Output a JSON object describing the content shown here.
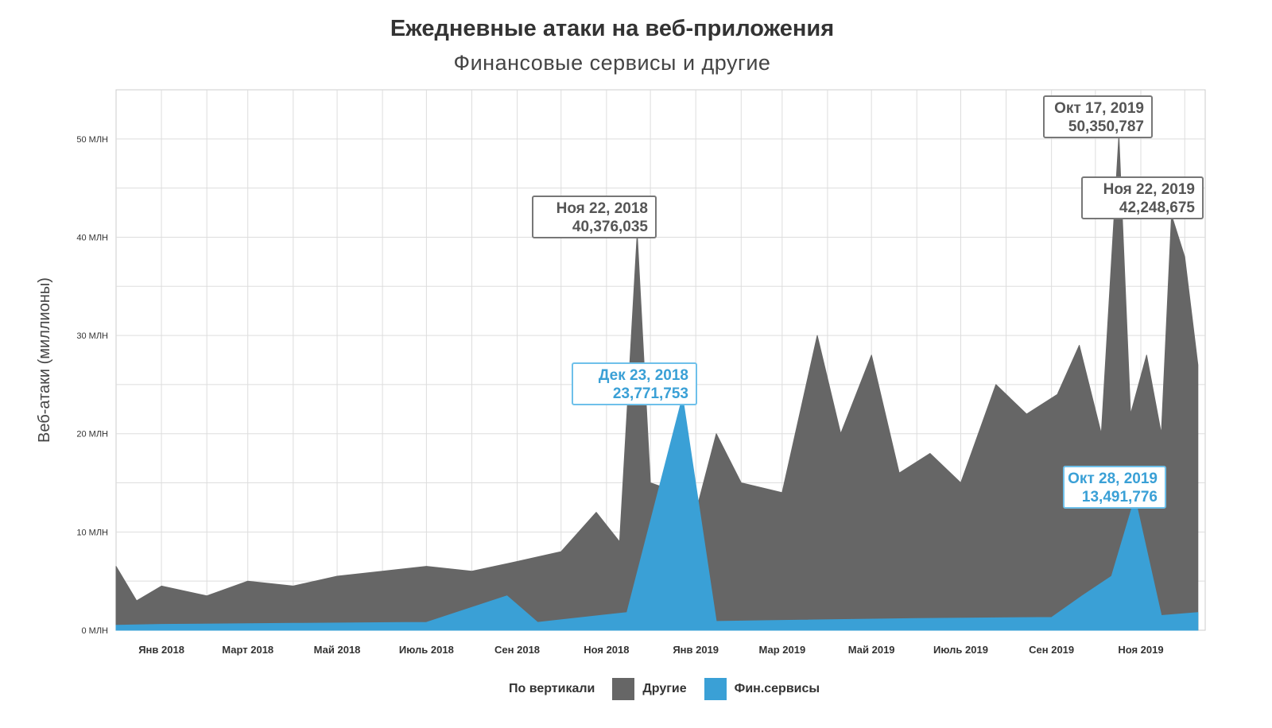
{
  "chart_data": {
    "type": "area",
    "title": "Ежедневные атаки на веб-приложения",
    "subtitle": "Финансовые сервисы и другие",
    "ylabel": "Веб-атаки (миллионы)",
    "ylim": [
      0,
      55000000
    ],
    "yticks": [
      {
        "value": 0,
        "label": "0 МЛН"
      },
      {
        "value": 10000000,
        "label": "10 МЛН"
      },
      {
        "value": 20000000,
        "label": "20 МЛН"
      },
      {
        "value": 30000000,
        "label": "30 МЛН"
      },
      {
        "value": 40000000,
        "label": "40 МЛН"
      },
      {
        "value": 50000000,
        "label": "50 МЛН"
      }
    ],
    "xlim": [
      "2017-12-01",
      "2019-12-15"
    ],
    "xticks": [
      {
        "date": "2018-01-01",
        "label": "Янв 2018"
      },
      {
        "date": "2018-03-01",
        "label": "Март 2018"
      },
      {
        "date": "2018-05-01",
        "label": "Май 2018"
      },
      {
        "date": "2018-07-01",
        "label": "Июль 2018"
      },
      {
        "date": "2018-09-01",
        "label": "Сен 2018"
      },
      {
        "date": "2018-11-01",
        "label": "Ноя 2018"
      },
      {
        "date": "2019-01-01",
        "label": "Янв 2019"
      },
      {
        "date": "2019-03-01",
        "label": "Мар 2019"
      },
      {
        "date": "2019-05-01",
        "label": "Май 2019"
      },
      {
        "date": "2019-07-01",
        "label": "Июль 2019"
      },
      {
        "date": "2019-09-01",
        "label": "Сен 2019"
      },
      {
        "date": "2019-11-01",
        "label": "Ноя 2019"
      }
    ],
    "grid": true,
    "legend": {
      "title": "По вертикали",
      "placement": "bottom"
    },
    "series": [
      {
        "name": "Другие",
        "color": "#666666",
        "points": [
          [
            "2017-12-01",
            6500000
          ],
          [
            "2017-12-15",
            3000000
          ],
          [
            "2018-01-01",
            4500000
          ],
          [
            "2018-02-01",
            3500000
          ],
          [
            "2018-03-01",
            5000000
          ],
          [
            "2018-04-01",
            4500000
          ],
          [
            "2018-05-01",
            5500000
          ],
          [
            "2018-06-01",
            6000000
          ],
          [
            "2018-07-01",
            6500000
          ],
          [
            "2018-08-01",
            6000000
          ],
          [
            "2018-09-01",
            7000000
          ],
          [
            "2018-10-01",
            8000000
          ],
          [
            "2018-10-25",
            12000000
          ],
          [
            "2018-11-10",
            9000000
          ],
          [
            "2018-11-22",
            40376035
          ],
          [
            "2018-12-01",
            15000000
          ],
          [
            "2018-12-20",
            14000000
          ],
          [
            "2019-01-01",
            12000000
          ],
          [
            "2019-01-15",
            20000000
          ],
          [
            "2019-02-01",
            15000000
          ],
          [
            "2019-03-01",
            14000000
          ],
          [
            "2019-03-25",
            30000000
          ],
          [
            "2019-04-10",
            20000000
          ],
          [
            "2019-05-01",
            28000000
          ],
          [
            "2019-05-20",
            16000000
          ],
          [
            "2019-06-10",
            18000000
          ],
          [
            "2019-07-01",
            15000000
          ],
          [
            "2019-07-25",
            25000000
          ],
          [
            "2019-08-15",
            22000000
          ],
          [
            "2019-09-05",
            24000000
          ],
          [
            "2019-09-20",
            29000000
          ],
          [
            "2019-10-05",
            20000000
          ],
          [
            "2019-10-17",
            50350787
          ],
          [
            "2019-10-25",
            22000000
          ],
          [
            "2019-11-05",
            28000000
          ],
          [
            "2019-11-15",
            20000000
          ],
          [
            "2019-11-22",
            42248675
          ],
          [
            "2019-12-01",
            38000000
          ],
          [
            "2019-12-10",
            27000000
          ]
        ]
      },
      {
        "name": "Фин.сервисы",
        "color": "#3aa0d6",
        "points": [
          [
            "2017-12-01",
            500000
          ],
          [
            "2018-01-01",
            600000
          ],
          [
            "2018-04-01",
            700000
          ],
          [
            "2018-07-01",
            800000
          ],
          [
            "2018-08-25",
            3500000
          ],
          [
            "2018-09-15",
            800000
          ],
          [
            "2018-11-15",
            1800000
          ],
          [
            "2018-12-23",
            23771753
          ],
          [
            "2019-01-15",
            900000
          ],
          [
            "2019-03-01",
            1000000
          ],
          [
            "2019-06-01",
            1200000
          ],
          [
            "2019-09-01",
            1300000
          ],
          [
            "2019-09-22",
            3500000
          ],
          [
            "2019-10-12",
            5500000
          ],
          [
            "2019-10-28",
            13491776
          ],
          [
            "2019-11-15",
            1500000
          ],
          [
            "2019-12-10",
            1800000
          ]
        ]
      }
    ],
    "annotations": [
      {
        "series": "Другие",
        "date": "Ноя 22, 2018",
        "value": "40,376,035"
      },
      {
        "series": "Фин.сервисы",
        "date": "Дек 23, 2018",
        "value": "23,771,753"
      },
      {
        "series": "Другие",
        "date": "Окт 17, 2019",
        "value": "50,350,787"
      },
      {
        "series": "Другие",
        "date": "Ноя 22, 2019",
        "value": "42,248,675"
      },
      {
        "series": "Фин.сервисы",
        "date": "Окт 28, 2019",
        "value": "13,491,776"
      }
    ]
  }
}
